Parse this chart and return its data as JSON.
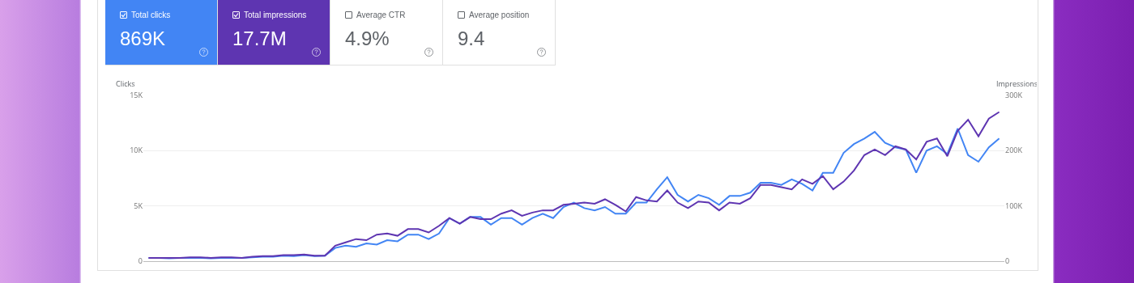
{
  "chart_data": [
    {
      "type": "other",
      "annotations": [
        "Total clicks",
        "869K",
        "Total impressions",
        "17.7M",
        "Average CTR",
        "4.9%",
        "Average position",
        "9.4"
      ]
    },
    {
      "type": "line",
      "ylabel": "Clicks",
      "y2label": "Impressions",
      "grid": "y",
      "marker": "none",
      "line_style": "solid",
      "categories": [
        null,
        null,
        null,
        null,
        null,
        null,
        null,
        null,
        null,
        null,
        null,
        null,
        null,
        null,
        null,
        null,
        null,
        null,
        null,
        null,
        null,
        null,
        null,
        null,
        null,
        null,
        null,
        null,
        null,
        null,
        null,
        null,
        null,
        null,
        null,
        null,
        null,
        null,
        null,
        null,
        null,
        null,
        null,
        null,
        null,
        null,
        null,
        null,
        null,
        null,
        null,
        null,
        null,
        null,
        null,
        null,
        null,
        null,
        null,
        null,
        null,
        null,
        null,
        null,
        null,
        null,
        null,
        null,
        null,
        null,
        null,
        null,
        null,
        null,
        null,
        null,
        null,
        null,
        null,
        null,
        null,
        null,
        null
      ],
      "ylim": [
        0,
        15000
      ],
      "yticks": [
        {
          "value": 0,
          "label": "0"
        },
        {
          "value": 5000,
          "label": "5K"
        },
        {
          "value": 10000,
          "label": "10K"
        },
        {
          "value": 15000,
          "label": "15K"
        }
      ],
      "y2lim": [
        0,
        300000
      ],
      "y2ticks": [
        {
          "value": 0,
          "label": "0"
        },
        {
          "value": 100000,
          "label": "100K"
        },
        {
          "value": 200000,
          "label": "200K"
        },
        {
          "value": 300000,
          "label": "300K"
        }
      ],
      "series": [
        {
          "color": "#4285f4",
          "values": [
            300,
            300,
            250,
            300,
            300,
            300,
            250,
            300,
            300,
            300,
            350,
            400,
            400,
            500,
            450,
            550,
            450,
            500,
            1200,
            1400,
            1300,
            1600,
            1500,
            1900,
            1800,
            2400,
            2400,
            2000,
            2500,
            3900,
            3400,
            4000,
            4000,
            3300,
            3900,
            3900,
            3300,
            3900,
            4300,
            3900,
            4900,
            5300,
            4800,
            4600,
            4900,
            4300,
            4300,
            5300,
            5300,
            6500,
            7600,
            6000,
            5400,
            6000,
            5700,
            5100,
            5900,
            5900,
            6200,
            7100,
            7100,
            6900,
            7400,
            7000,
            6400,
            8000,
            8000,
            9800,
            10600,
            11100,
            11700,
            10700,
            10300,
            10100,
            8000,
            10000,
            10400,
            9700,
            12000,
            9600,
            9000,
            10300,
            11100
          ]
        },
        {
          "color": "#5e35b1",
          "axis": "y2",
          "values": [
            6000,
            6000,
            6000,
            6000,
            7000,
            7000,
            6000,
            7000,
            7000,
            6000,
            8000,
            9000,
            9000,
            11000,
            11000,
            12000,
            10000,
            10000,
            28000,
            34000,
            40000,
            38000,
            48000,
            50000,
            46000,
            58000,
            58000,
            52000,
            64000,
            78000,
            68000,
            80000,
            76000,
            76000,
            86000,
            92000,
            82000,
            88000,
            92000,
            92000,
            102000,
            104000,
            106000,
            104000,
            112000,
            102000,
            90000,
            116000,
            110000,
            108000,
            128000,
            106000,
            96000,
            108000,
            106000,
            92000,
            106000,
            104000,
            114000,
            138000,
            138000,
            134000,
            130000,
            148000,
            140000,
            154000,
            130000,
            144000,
            164000,
            192000,
            202000,
            192000,
            208000,
            202000,
            184000,
            216000,
            222000,
            190000,
            236000,
            256000,
            226000,
            258000,
            270000
          ]
        }
      ]
    }
  ]
}
